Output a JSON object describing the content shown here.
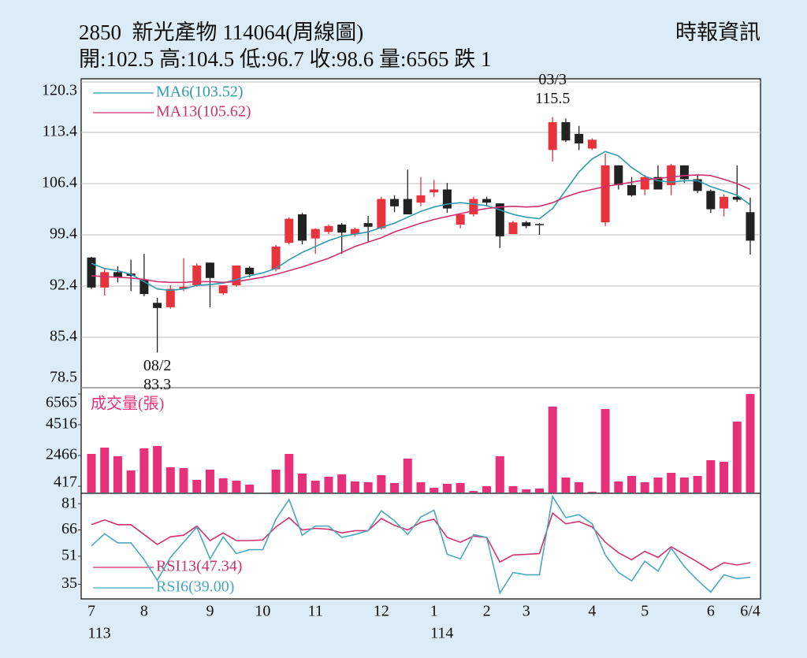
{
  "header": {
    "title": "2850  新光產物 114064(周線圖)",
    "quote": "開:102.5 高:104.5 低:96.7 收:98.6 量:6565 跌 1",
    "source": "時報資訊"
  },
  "chart_data": [
    {
      "type": "candlestick",
      "up_color": "#e8323c",
      "down_color": "#222222",
      "grid": true,
      "open": [
        96.3,
        92.2,
        94.3,
        94.1,
        93.3,
        90.1,
        89.5,
        92.0,
        92.5,
        95.6,
        91.4,
        92.5,
        94.9,
        null,
        94.7,
        98.3,
        102.2,
        98.9,
        99.8,
        100.8,
        99.5,
        101.0,
        100.3,
        104.3,
        104.3,
        103.8,
        105.2,
        105.6,
        100.8,
        102.2,
        104.3,
        103.7,
        99.5,
        101.1,
        100.8,
        111.0,
        114.8,
        113.2,
        111.2,
        101.1,
        108.9,
        106.2,
        105.6,
        107.3,
        106.2,
        108.9,
        107.0,
        105.4,
        103.0,
        104.6,
        102.5
      ],
      "high": [
        96.4,
        94.9,
        95.1,
        96.0,
        96.8,
        90.8,
        92.5,
        96.2,
        95.5,
        95.6,
        92.5,
        95.2,
        95.1,
        null,
        98.0,
        101.8,
        102.4,
        100.3,
        100.8,
        101.0,
        100.4,
        102.0,
        104.6,
        104.8,
        108.3,
        107.3,
        106.9,
        106.5,
        102.2,
        104.6,
        104.6,
        103.7,
        101.3,
        101.3,
        101.0,
        115.5,
        115.3,
        114.3,
        112.6,
        110.5,
        108.9,
        107.3,
        107.6,
        108.9,
        109.1,
        108.9,
        107.6,
        105.6,
        104.9,
        108.9,
        104.5
      ],
      "low": [
        92.0,
        91.1,
        92.9,
        91.7,
        91.0,
        83.3,
        89.3,
        91.7,
        92.3,
        89.5,
        91.2,
        92.3,
        93.6,
        null,
        94.4,
        98.1,
        98.1,
        96.8,
        99.5,
        96.8,
        99.2,
        98.5,
        100.1,
        102.5,
        102.2,
        103.3,
        104.6,
        102.4,
        100.3,
        101.9,
        103.3,
        97.6,
        99.5,
        100.3,
        99.4,
        109.4,
        112.1,
        111.0,
        111.0,
        100.6,
        105.6,
        104.6,
        104.8,
        105.6,
        104.8,
        106.5,
        105.1,
        102.4,
        101.9,
        103.9,
        96.7
      ],
      "close": [
        92.2,
        94.3,
        93.6,
        93.8,
        91.3,
        89.4,
        92.0,
        92.3,
        95.2,
        93.5,
        92.5,
        95.2,
        94.0,
        null,
        97.8,
        101.6,
        98.6,
        100.2,
        100.6,
        99.7,
        100.2,
        100.5,
        104.3,
        103.3,
        102.2,
        104.8,
        105.6,
        103.0,
        102.2,
        104.3,
        103.8,
        99.2,
        101.1,
        100.6,
        100.8,
        114.8,
        112.3,
        111.9,
        112.4,
        108.9,
        106.2,
        104.8,
        107.3,
        105.6,
        108.9,
        107.0,
        105.4,
        102.9,
        104.6,
        104.2,
        98.6
      ],
      "series": [
        {
          "name": "MA6(103.52)",
          "color": "#2f9bb0",
          "values": [
            95.5,
            94.8,
            94.5,
            94.0,
            93.0,
            92.0,
            91.8,
            92.0,
            92.5,
            92.6,
            92.8,
            93.3,
            93.8,
            94.2,
            94.8,
            96.0,
            97.0,
            97.8,
            98.6,
            99.2,
            99.5,
            99.8,
            100.4,
            101.0,
            101.8,
            102.6,
            103.2,
            103.6,
            103.8,
            103.6,
            103.4,
            102.8,
            102.2,
            101.8,
            101.6,
            103.0,
            105.5,
            108.0,
            109.8,
            110.8,
            110.2,
            108.6,
            107.4,
            106.8,
            106.6,
            106.8,
            106.8,
            106.0,
            105.4,
            104.8,
            103.52
          ]
        },
        {
          "name": "MA13(105.62)",
          "color": "#d0326e",
          "values": [
            93.8,
            93.7,
            93.6,
            93.5,
            93.3,
            93.0,
            92.9,
            92.9,
            93.0,
            93.0,
            92.9,
            93.0,
            93.3,
            93.6,
            94.0,
            94.5,
            95.0,
            95.6,
            96.2,
            97.0,
            97.8,
            98.4,
            99.0,
            99.8,
            100.4,
            101.0,
            101.5,
            101.9,
            102.3,
            102.7,
            103.0,
            103.2,
            103.3,
            103.2,
            103.3,
            103.8,
            104.6,
            105.2,
            105.6,
            106.0,
            106.3,
            106.6,
            106.9,
            107.1,
            107.3,
            107.5,
            107.6,
            107.5,
            107.0,
            106.4,
            105.62
          ]
        }
      ],
      "annotations": [
        {
          "label": "08/2",
          "value": 83.3
        },
        {
          "label": "03/3",
          "value": 115.5
        }
      ],
      "ylim": [
        78.5,
        120.3
      ],
      "yticks": [
        120.3,
        113.4,
        106.4,
        99.4,
        92.4,
        85.4,
        78.5
      ]
    },
    {
      "type": "bar",
      "title": "成交量(張)",
      "color": "#e8307a",
      "grid": false,
      "values": [
        2573,
        2993,
        2416,
        1470,
        2941,
        3098,
        1680,
        1628,
        840,
        1523,
        945,
        788,
        525,
        null,
        1523,
        2573,
        1260,
        788,
        1050,
        1208,
        735,
        683,
        1155,
        630,
        2258,
        683,
        315,
        578,
        630,
        100,
        420,
        2416,
        420,
        210,
        263,
        5723,
        998,
        683,
        53,
        5565,
        735,
        1103,
        683,
        998,
        1313,
        998,
        1103,
        2153,
        2048,
        4727,
        6565
      ],
      "ylim": [
        0,
        6565
      ],
      "yticks": [
        417,
        2466,
        4516,
        6565
      ]
    },
    {
      "type": "line",
      "grid": false,
      "categories": [
        "7",
        null,
        null,
        null,
        "8",
        null,
        null,
        null,
        null,
        "9",
        null,
        null,
        null,
        "10",
        null,
        null,
        null,
        "11",
        null,
        null,
        null,
        null,
        "12",
        null,
        null,
        null,
        "1",
        null,
        null,
        null,
        "2",
        null,
        null,
        "3",
        null,
        null,
        null,
        null,
        "4",
        null,
        null,
        null,
        "5",
        null,
        null,
        null,
        null,
        "6",
        null,
        null,
        "6/4"
      ],
      "year_labels": [
        "113",
        null,
        null,
        null,
        null,
        null,
        null,
        null,
        null,
        null,
        null,
        null,
        null,
        null,
        null,
        null,
        null,
        null,
        null,
        null,
        null,
        null,
        null,
        null,
        null,
        null,
        "114",
        null,
        null,
        null,
        null,
        null,
        null,
        null,
        null,
        null,
        null,
        null,
        null,
        null,
        null,
        null,
        null,
        null,
        null,
        null,
        null,
        null,
        null,
        null,
        null
      ],
      "series": [
        {
          "name": "RSI13(47.34)",
          "color": "#d0326e",
          "values": [
            69.0,
            71.7,
            69.0,
            69.0,
            63.4,
            57.7,
            62.1,
            63.0,
            68.2,
            59.9,
            64.3,
            59.9,
            59.9,
            60.3,
            67.7,
            73.0,
            66.0,
            66.9,
            66.4,
            64.3,
            65.6,
            65.6,
            72.5,
            68.6,
            66.0,
            70.3,
            72.1,
            61.7,
            59.0,
            62.5,
            61.7,
            47.7,
            51.7,
            52.1,
            52.5,
            75.6,
            69.5,
            70.8,
            67.7,
            59.0,
            53.0,
            49.0,
            53.8,
            50.3,
            56.4,
            52.1,
            47.7,
            43.0,
            47.3,
            46.0,
            47.34
          ]
        },
        {
          "name": "RSI6(39.00)",
          "color": "#4aa8c0",
          "values": [
            56.9,
            63.8,
            58.6,
            58.6,
            49.0,
            37.3,
            50.3,
            59.0,
            67.7,
            49.5,
            62.1,
            52.5,
            54.7,
            54.7,
            72.1,
            83.4,
            63.0,
            68.2,
            68.2,
            61.7,
            63.4,
            65.6,
            76.9,
            71.2,
            63.4,
            73.4,
            77.3,
            52.1,
            49.5,
            63.4,
            61.7,
            30.0,
            41.7,
            40.4,
            40.4,
            85.1,
            73.0,
            74.7,
            69.5,
            51.7,
            41.7,
            36.9,
            48.2,
            42.5,
            55.6,
            45.1,
            37.3,
            30.5,
            40.4,
            38.2,
            39.0
          ]
        }
      ],
      "ylim": [
        28,
        86
      ],
      "yticks": [
        35,
        51,
        66,
        81
      ]
    }
  ]
}
